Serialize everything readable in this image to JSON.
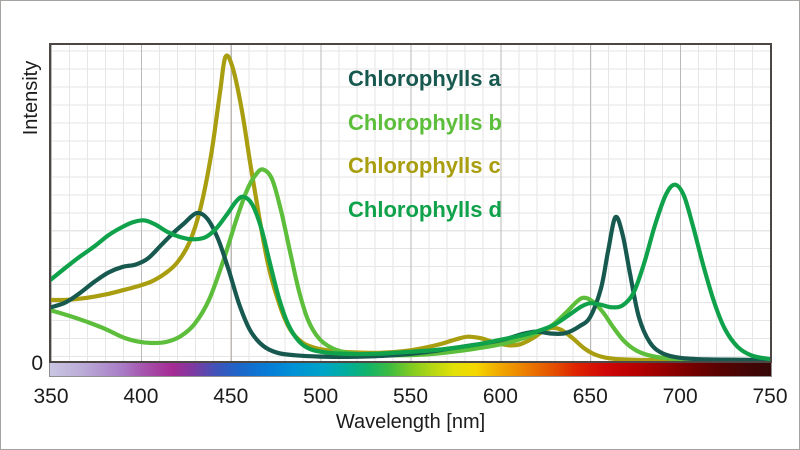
{
  "axes": {
    "x_label": "Wavelength [nm]",
    "y_label": "Intensity",
    "y_zero": "0",
    "x_ticks": [
      350,
      400,
      450,
      500,
      550,
      600,
      650,
      700,
      750
    ],
    "text_color": "#1c1c1c",
    "plot_border_color": "#4c4745",
    "grid_minor_color": "#e6e6e6",
    "grid_major_color": "#bcb9b7"
  },
  "legend": {
    "items": [
      {
        "label": "Chlorophylls a",
        "color": "#17594f"
      },
      {
        "label": "Chlorophylls b",
        "color": "#5cbe3a"
      },
      {
        "label": "Chlorophylls c",
        "color": "#a89e10"
      },
      {
        "label": "Chlorophylls d",
        "color": "#0fa24b"
      }
    ]
  },
  "spectrum_bar": {
    "stops": [
      [
        0,
        "#cac6e2"
      ],
      [
        5,
        "#b9a8d6"
      ],
      [
        10,
        "#a87cc6"
      ],
      [
        13,
        "#a653ad"
      ],
      [
        17,
        "#a62b94"
      ],
      [
        20,
        "#7a3ba2"
      ],
      [
        23,
        "#4153b8"
      ],
      [
        26,
        "#1e64c8"
      ],
      [
        30,
        "#077bd6"
      ],
      [
        34,
        "#0092d6"
      ],
      [
        38,
        "#00a4c6"
      ],
      [
        41,
        "#00ae9e"
      ],
      [
        44,
        "#12b36b"
      ],
      [
        47,
        "#3cbb42"
      ],
      [
        50,
        "#7fca22"
      ],
      [
        53,
        "#b4d714"
      ],
      [
        56,
        "#e2e007"
      ],
      [
        59,
        "#f4d800"
      ],
      [
        62,
        "#f2ad00"
      ],
      [
        66,
        "#ec7d00"
      ],
      [
        70,
        "#e44d00"
      ],
      [
        73,
        "#de2300"
      ],
      [
        77,
        "#d00707"
      ],
      [
        81,
        "#b80000"
      ],
      [
        85,
        "#980000"
      ],
      [
        89,
        "#760000"
      ],
      [
        93,
        "#580202"
      ],
      [
        97,
        "#420606"
      ],
      [
        100,
        "#370808"
      ]
    ]
  },
  "chart_data": {
    "type": "line",
    "title": "",
    "xlabel": "Wavelength [nm]",
    "ylabel": "Intensity",
    "xlim": [
      350,
      750
    ],
    "ylim": [
      0,
      1
    ],
    "x_ticks": [
      350,
      400,
      450,
      500,
      550,
      600,
      650,
      700,
      750
    ],
    "grid": true,
    "legend_position": "upper center",
    "series": [
      {
        "name": "Chlorophylls a",
        "color": "#17594f",
        "points": [
          [
            350,
            0.17
          ],
          [
            358,
            0.185
          ],
          [
            366,
            0.215
          ],
          [
            374,
            0.25
          ],
          [
            382,
            0.28
          ],
          [
            390,
            0.298
          ],
          [
            397,
            0.305
          ],
          [
            404,
            0.325
          ],
          [
            411,
            0.365
          ],
          [
            418,
            0.405
          ],
          [
            424,
            0.435
          ],
          [
            431,
            0.468
          ],
          [
            437,
            0.45
          ],
          [
            443,
            0.385
          ],
          [
            449,
            0.285
          ],
          [
            455,
            0.175
          ],
          [
            461,
            0.095
          ],
          [
            468,
            0.048
          ],
          [
            476,
            0.026
          ],
          [
            486,
            0.018
          ],
          [
            500,
            0.014
          ],
          [
            515,
            0.013
          ],
          [
            530,
            0.015
          ],
          [
            545,
            0.02
          ],
          [
            560,
            0.029
          ],
          [
            575,
            0.042
          ],
          [
            590,
            0.055
          ],
          [
            602,
            0.068
          ],
          [
            612,
            0.085
          ],
          [
            620,
            0.093
          ],
          [
            628,
            0.087
          ],
          [
            636,
            0.088
          ],
          [
            644,
            0.11
          ],
          [
            650,
            0.14
          ],
          [
            656,
            0.23
          ],
          [
            660,
            0.35
          ],
          [
            664,
            0.455
          ],
          [
            668,
            0.4
          ],
          [
            672,
            0.28
          ],
          [
            677,
            0.14
          ],
          [
            683,
            0.06
          ],
          [
            690,
            0.025
          ],
          [
            700,
            0.01
          ],
          [
            715,
            0.005
          ],
          [
            732,
            0.004
          ],
          [
            750,
            0.003
          ]
        ]
      },
      {
        "name": "Chlorophylls b",
        "color": "#5cbe3a",
        "points": [
          [
            350,
            0.16
          ],
          [
            360,
            0.143
          ],
          [
            370,
            0.124
          ],
          [
            380,
            0.102
          ],
          [
            390,
            0.075
          ],
          [
            398,
            0.062
          ],
          [
            406,
            0.057
          ],
          [
            414,
            0.06
          ],
          [
            422,
            0.078
          ],
          [
            430,
            0.118
          ],
          [
            438,
            0.195
          ],
          [
            446,
            0.32
          ],
          [
            453,
            0.445
          ],
          [
            459,
            0.54
          ],
          [
            464,
            0.59
          ],
          [
            468,
            0.606
          ],
          [
            473,
            0.575
          ],
          [
            478,
            0.475
          ],
          [
            483,
            0.345
          ],
          [
            488,
            0.22
          ],
          [
            493,
            0.13
          ],
          [
            499,
            0.072
          ],
          [
            506,
            0.042
          ],
          [
            515,
            0.026
          ],
          [
            528,
            0.02
          ],
          [
            542,
            0.018
          ],
          [
            556,
            0.02
          ],
          [
            570,
            0.027
          ],
          [
            584,
            0.037
          ],
          [
            597,
            0.049
          ],
          [
            608,
            0.064
          ],
          [
            618,
            0.083
          ],
          [
            628,
            0.11
          ],
          [
            636,
            0.15
          ],
          [
            642,
            0.185
          ],
          [
            646,
            0.2
          ],
          [
            651,
            0.19
          ],
          [
            657,
            0.155
          ],
          [
            663,
            0.105
          ],
          [
            669,
            0.062
          ],
          [
            676,
            0.032
          ],
          [
            684,
            0.016
          ],
          [
            695,
            0.008
          ],
          [
            715,
            0.004
          ],
          [
            735,
            0.003
          ],
          [
            750,
            0.003
          ]
        ]
      },
      {
        "name": "Chlorophylls c",
        "color": "#a89e10",
        "points": [
          [
            350,
            0.193
          ],
          [
            360,
            0.194
          ],
          [
            370,
            0.2
          ],
          [
            380,
            0.21
          ],
          [
            390,
            0.224
          ],
          [
            398,
            0.236
          ],
          [
            406,
            0.252
          ],
          [
            413,
            0.275
          ],
          [
            420,
            0.31
          ],
          [
            427,
            0.375
          ],
          [
            433,
            0.48
          ],
          [
            439,
            0.65
          ],
          [
            444,
            0.85
          ],
          [
            447,
            0.962
          ],
          [
            451,
            0.93
          ],
          [
            456,
            0.8
          ],
          [
            461,
            0.62
          ],
          [
            466,
            0.45
          ],
          [
            471,
            0.3
          ],
          [
            477,
            0.18
          ],
          [
            483,
            0.1
          ],
          [
            490,
            0.058
          ],
          [
            498,
            0.04
          ],
          [
            508,
            0.031
          ],
          [
            520,
            0.027
          ],
          [
            533,
            0.026
          ],
          [
            546,
            0.031
          ],
          [
            557,
            0.041
          ],
          [
            567,
            0.054
          ],
          [
            575,
            0.068
          ],
          [
            582,
            0.077
          ],
          [
            589,
            0.072
          ],
          [
            596,
            0.06
          ],
          [
            604,
            0.05
          ],
          [
            611,
            0.053
          ],
          [
            618,
            0.072
          ],
          [
            624,
            0.095
          ],
          [
            629,
            0.105
          ],
          [
            634,
            0.098
          ],
          [
            640,
            0.073
          ],
          [
            646,
            0.043
          ],
          [
            652,
            0.022
          ],
          [
            659,
            0.01
          ],
          [
            668,
            0.005
          ],
          [
            685,
            0.003
          ],
          [
            710,
            0.002
          ],
          [
            750,
            0.002
          ]
        ]
      },
      {
        "name": "Chlorophylls d",
        "color": "#0fa24b",
        "points": [
          [
            350,
            0.258
          ],
          [
            358,
            0.295
          ],
          [
            366,
            0.33
          ],
          [
            374,
            0.362
          ],
          [
            382,
            0.398
          ],
          [
            390,
            0.425
          ],
          [
            396,
            0.44
          ],
          [
            402,
            0.445
          ],
          [
            408,
            0.432
          ],
          [
            415,
            0.408
          ],
          [
            422,
            0.392
          ],
          [
            429,
            0.385
          ],
          [
            436,
            0.392
          ],
          [
            442,
            0.42
          ],
          [
            448,
            0.465
          ],
          [
            453,
            0.505
          ],
          [
            457,
            0.52
          ],
          [
            462,
            0.495
          ],
          [
            467,
            0.42
          ],
          [
            472,
            0.305
          ],
          [
            477,
            0.195
          ],
          [
            482,
            0.115
          ],
          [
            488,
            0.062
          ],
          [
            495,
            0.036
          ],
          [
            505,
            0.026
          ],
          [
            518,
            0.022
          ],
          [
            532,
            0.023
          ],
          [
            546,
            0.028
          ],
          [
            560,
            0.033
          ],
          [
            574,
            0.041
          ],
          [
            588,
            0.053
          ],
          [
            600,
            0.067
          ],
          [
            611,
            0.08
          ],
          [
            621,
            0.095
          ],
          [
            630,
            0.115
          ],
          [
            638,
            0.145
          ],
          [
            645,
            0.172
          ],
          [
            650,
            0.183
          ],
          [
            656,
            0.178
          ],
          [
            662,
            0.17
          ],
          [
            668,
            0.176
          ],
          [
            674,
            0.215
          ],
          [
            680,
            0.31
          ],
          [
            686,
            0.43
          ],
          [
            692,
            0.525
          ],
          [
            697,
            0.558
          ],
          [
            702,
            0.525
          ],
          [
            707,
            0.43
          ],
          [
            713,
            0.3
          ],
          [
            719,
            0.185
          ],
          [
            725,
            0.1
          ],
          [
            732,
            0.045
          ],
          [
            740,
            0.017
          ],
          [
            750,
            0.006
          ]
        ]
      }
    ]
  }
}
